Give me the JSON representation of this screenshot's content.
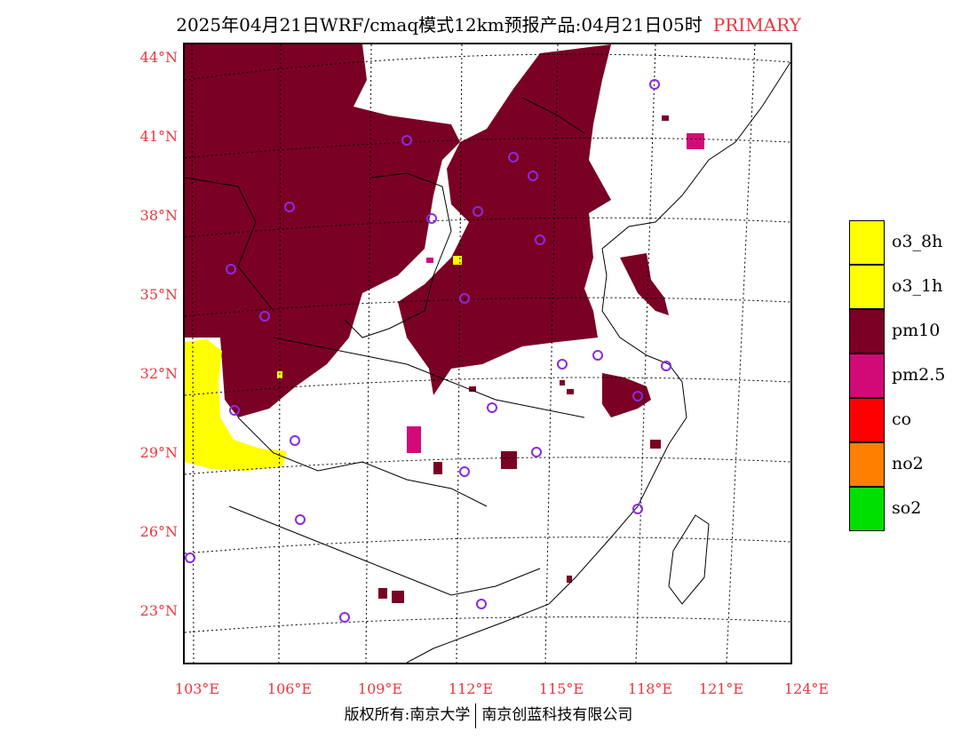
{
  "title": {
    "main": "2025年04月21日WRF/cmaq模式12km预报产品:04月21日05时",
    "tag": "PRIMARY"
  },
  "lat_labels": [
    "44°N",
    "41°N",
    "38°N",
    "35°N",
    "32°N",
    "29°N",
    "26°N",
    "23°N"
  ],
  "lon_labels": [
    "103°E",
    "106°E",
    "109°E",
    "112°E",
    "115°E",
    "118°E",
    "121°E",
    "124°E"
  ],
  "legend": [
    {
      "label": "o3_8h",
      "color": "#ffff00"
    },
    {
      "label": "o3_1h",
      "color": "#ffff00"
    },
    {
      "label": "pm10",
      "color": "#7a0024"
    },
    {
      "label": "pm2.5",
      "color": "#d10a78"
    },
    {
      "label": "co",
      "color": "#ff0000"
    },
    {
      "label": "no2",
      "color": "#ff8000"
    },
    {
      "label": "so2",
      "color": "#00e000"
    }
  ],
  "footer": {
    "left": "版权所有:南京大学",
    "right": "南京创蓝科技有限公司"
  },
  "map": {
    "region": "Eastern China primary pollutant forecast",
    "pollutant_colors": {
      "pm10": "#7a0024",
      "pm2_5": "#d10a78",
      "o3": "#ffff00",
      "station": "#8a2be2"
    }
  }
}
